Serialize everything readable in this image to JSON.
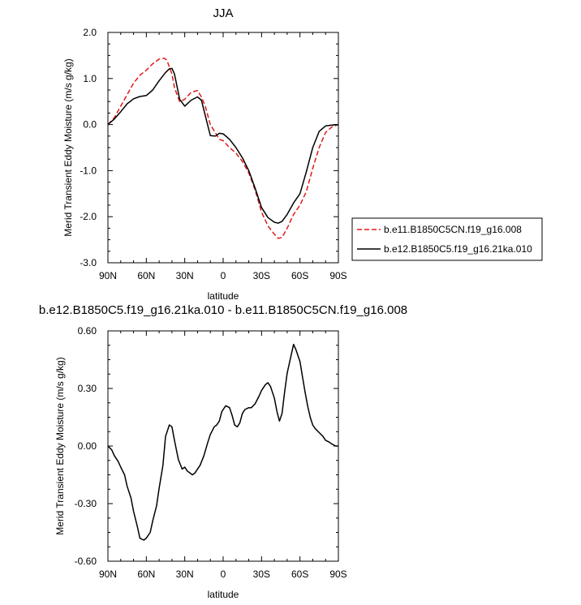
{
  "chart_data": [
    {
      "type": "line",
      "title": "JJA",
      "xlabel": "latitude",
      "ylabel": "Merid Transient Eddy Moisture (m/s g/kg)",
      "xlim": [
        90,
        -90
      ],
      "ylim": [
        -3.0,
        2.0
      ],
      "x_ticks": [
        {
          "value": 90,
          "label": "90N"
        },
        {
          "value": 60,
          "label": "60N"
        },
        {
          "value": 30,
          "label": "30N"
        },
        {
          "value": 0,
          "label": "0"
        },
        {
          "value": -30,
          "label": "30S"
        },
        {
          "value": -60,
          "label": "60S"
        },
        {
          "value": -90,
          "label": "90S"
        }
      ],
      "y_ticks": [
        {
          "value": 2.0,
          "label": "2.0"
        },
        {
          "value": 1.0,
          "label": "1.0"
        },
        {
          "value": 0.0,
          "label": "0.0"
        },
        {
          "value": -1.0,
          "label": "-1.0"
        },
        {
          "value": -2.0,
          "label": "-2.0"
        },
        {
          "value": -3.0,
          "label": "-3.0"
        }
      ],
      "legend_position": "right",
      "series": [
        {
          "name": "b.e11.B1850C5CN.f19_g16.008",
          "color": "#e0191b",
          "dash": "dashed",
          "x": [
            90,
            85,
            80,
            75,
            70,
            65,
            60,
            55,
            50,
            46,
            44,
            40,
            38,
            34,
            30,
            25,
            20,
            17,
            14,
            10,
            6,
            3,
            0,
            -5,
            -10,
            -15,
            -20,
            -25,
            -30,
            -35,
            -40,
            -43,
            -46,
            -50,
            -55,
            -60,
            -65,
            -70,
            -75,
            -80,
            -85,
            -90
          ],
          "y": [
            0.0,
            0.15,
            0.4,
            0.65,
            0.9,
            1.07,
            1.18,
            1.32,
            1.42,
            1.44,
            1.4,
            1.1,
            0.8,
            0.5,
            0.55,
            0.7,
            0.74,
            0.6,
            0.4,
            0.0,
            -0.18,
            -0.32,
            -0.35,
            -0.5,
            -0.62,
            -0.8,
            -1.05,
            -1.42,
            -1.9,
            -2.2,
            -2.38,
            -2.47,
            -2.45,
            -2.25,
            -1.95,
            -1.75,
            -1.45,
            -0.95,
            -0.5,
            -0.17,
            -0.05,
            0.0
          ]
        },
        {
          "name": "b.e12.B1850C5.f19_g16.21ka.010",
          "color": "#000000",
          "dash": "solid",
          "x": [
            90,
            85,
            80,
            75,
            70,
            65,
            60,
            55,
            50,
            45,
            42,
            40,
            38,
            34,
            30,
            25,
            20,
            17,
            14,
            10,
            6,
            3,
            0,
            -5,
            -10,
            -15,
            -20,
            -25,
            -30,
            -35,
            -40,
            -43,
            -46,
            -50,
            -55,
            -60,
            -65,
            -70,
            -75,
            -80,
            -85,
            -90
          ],
          "y": [
            0.0,
            0.12,
            0.28,
            0.45,
            0.56,
            0.61,
            0.63,
            0.75,
            0.95,
            1.13,
            1.21,
            1.22,
            1.1,
            0.55,
            0.4,
            0.53,
            0.6,
            0.53,
            0.2,
            -0.24,
            -0.25,
            -0.19,
            -0.2,
            -0.32,
            -0.5,
            -0.72,
            -1.0,
            -1.38,
            -1.8,
            -2.02,
            -2.12,
            -2.14,
            -2.1,
            -1.95,
            -1.7,
            -1.5,
            -1.02,
            -0.5,
            -0.15,
            -0.03,
            -0.01,
            0.0
          ]
        }
      ]
    },
    {
      "type": "line",
      "title": "b.e12.B1850C5.f19_g16.21ka.010 - b.e11.B1850C5CN.f19_g16.008",
      "xlabel": "latitude",
      "ylabel": "Merid Transient Eddy Moisture (m/s g/kg)",
      "xlim": [
        90,
        -90
      ],
      "ylim": [
        -0.6,
        0.6
      ],
      "x_ticks": [
        {
          "value": 90,
          "label": "90N"
        },
        {
          "value": 60,
          "label": "60N"
        },
        {
          "value": 30,
          "label": "30N"
        },
        {
          "value": 0,
          "label": "0"
        },
        {
          "value": -30,
          "label": "30S"
        },
        {
          "value": -60,
          "label": "60S"
        },
        {
          "value": -90,
          "label": "90S"
        }
      ],
      "y_ticks": [
        {
          "value": 0.6,
          "label": "0.60"
        },
        {
          "value": 0.3,
          "label": "0.30"
        },
        {
          "value": 0.0,
          "label": "0.00"
        },
        {
          "value": -0.3,
          "label": "-0.30"
        },
        {
          "value": -0.6,
          "label": "-0.60"
        }
      ],
      "series": [
        {
          "color": "#000000",
          "dash": "solid",
          "x": [
            90,
            87,
            85,
            82,
            80,
            77,
            75,
            72,
            70,
            67,
            65,
            62,
            60,
            57,
            55,
            52,
            50,
            47,
            45,
            42,
            40,
            38,
            35,
            32,
            30,
            28,
            26,
            24,
            22,
            20,
            18,
            15,
            12,
            10,
            7,
            5,
            3,
            1,
            0,
            -2,
            -5,
            -7,
            -9,
            -11,
            -13,
            -15,
            -17,
            -20,
            -22,
            -25,
            -28,
            -30,
            -33,
            -35,
            -37,
            -40,
            -42,
            -44,
            -46,
            -48,
            -50,
            -53,
            -55,
            -57,
            -60,
            -62,
            -64,
            -66,
            -68,
            -70,
            -72,
            -75,
            -78,
            -80,
            -83,
            -85,
            -88,
            -90
          ],
          "y": [
            0.0,
            -0.02,
            -0.05,
            -0.08,
            -0.11,
            -0.15,
            -0.21,
            -0.27,
            -0.34,
            -0.42,
            -0.48,
            -0.49,
            -0.48,
            -0.45,
            -0.39,
            -0.31,
            -0.22,
            -0.1,
            0.05,
            0.11,
            0.1,
            0.03,
            -0.07,
            -0.12,
            -0.11,
            -0.13,
            -0.14,
            -0.15,
            -0.14,
            -0.12,
            -0.1,
            -0.05,
            0.02,
            0.06,
            0.1,
            0.11,
            0.13,
            0.18,
            0.19,
            0.21,
            0.2,
            0.16,
            0.11,
            0.1,
            0.12,
            0.17,
            0.19,
            0.2,
            0.2,
            0.22,
            0.26,
            0.29,
            0.32,
            0.33,
            0.31,
            0.25,
            0.18,
            0.13,
            0.17,
            0.28,
            0.38,
            0.47,
            0.53,
            0.5,
            0.44,
            0.36,
            0.28,
            0.21,
            0.15,
            0.11,
            0.09,
            0.07,
            0.05,
            0.03,
            0.02,
            0.01,
            0.0,
            0.0
          ]
        }
      ]
    }
  ]
}
